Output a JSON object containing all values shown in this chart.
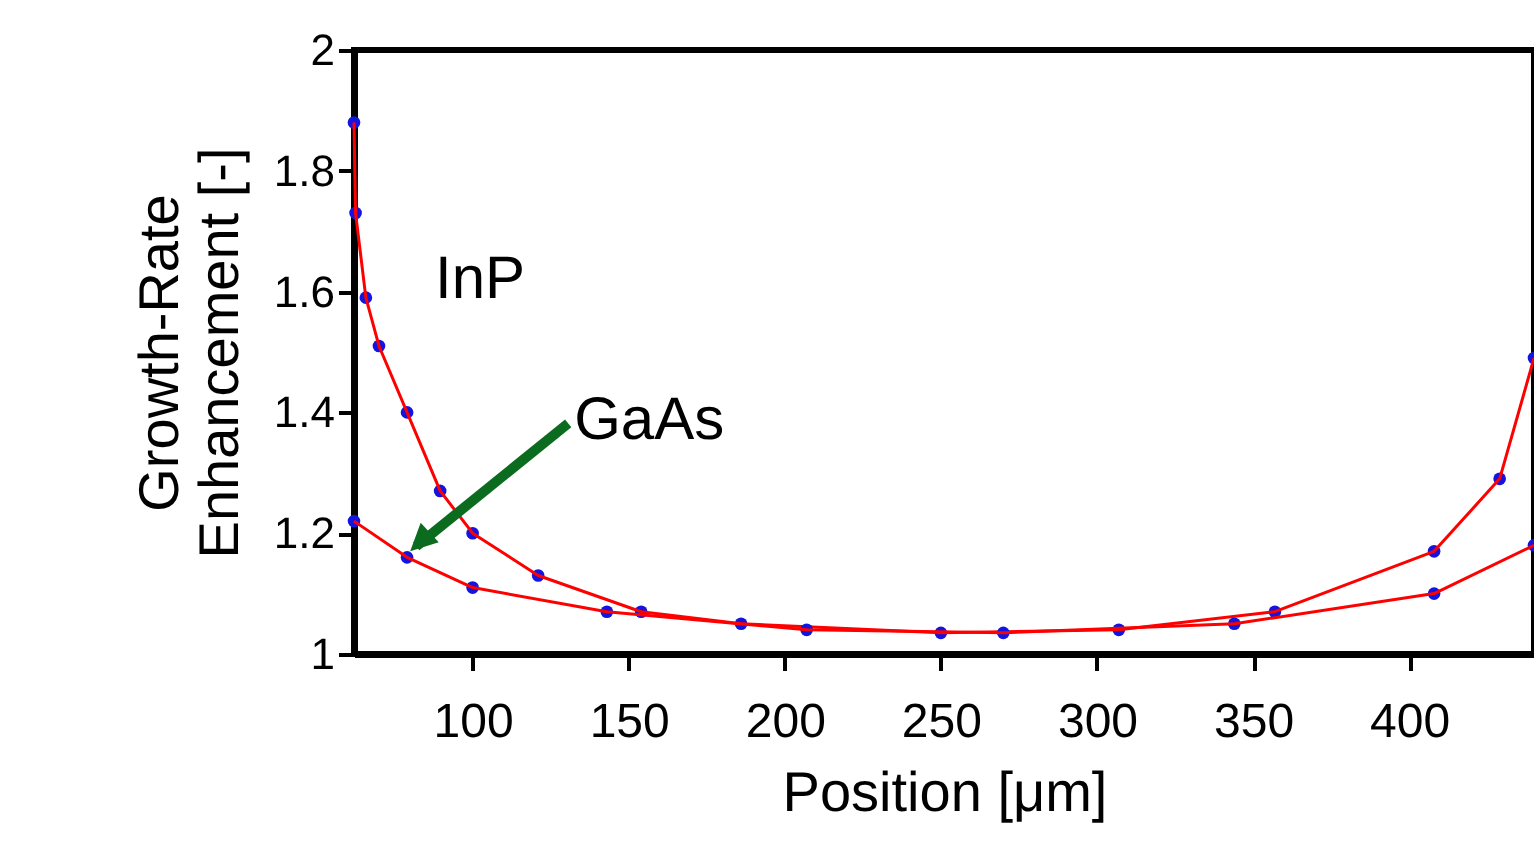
{
  "chart_data": {
    "type": "scatter",
    "xlabel": "Position [μm]",
    "ylabel": "Growth-Rate\nEnhancement [-]",
    "xlim": [
      62,
      440
    ],
    "ylim": [
      1,
      2
    ],
    "xticks": [
      100,
      150,
      200,
      250,
      300,
      350,
      400
    ],
    "yticks": [
      1,
      1.2,
      1.4,
      1.6,
      1.8,
      2
    ],
    "grid": false,
    "marker": "circle",
    "series": [
      {
        "color": "#1414e0",
        "x": [
          62,
          62.5,
          65.8,
          70,
          79,
          89.6,
          100,
          121,
          154,
          186,
          250,
          307,
          357,
          408,
          429,
          440
        ],
        "values": [
          1.88,
          1.73,
          1.59,
          1.51,
          1.4,
          1.27,
          1.2,
          1.13,
          1.07,
          1.05,
          1.035,
          1.04,
          1.07,
          1.17,
          1.29,
          1.49
        ]
      },
      {
        "type": "line",
        "marker": "none",
        "line_style": "solid",
        "color": "#ff0000",
        "x": [
          62,
          62.5,
          65.8,
          70,
          79,
          89.6,
          100,
          121,
          154,
          186,
          250,
          307,
          357,
          408,
          429,
          440
        ],
        "values": [
          1.88,
          1.73,
          1.59,
          1.51,
          1.4,
          1.27,
          1.2,
          1.13,
          1.07,
          1.05,
          1.035,
          1.04,
          1.07,
          1.17,
          1.29,
          1.49
        ]
      },
      {
        "color": "#1414e0",
        "x": [
          62,
          79,
          100,
          143,
          207,
          270,
          344,
          408,
          440
        ],
        "values": [
          1.22,
          1.16,
          1.11,
          1.07,
          1.04,
          1.035,
          1.05,
          1.1,
          1.18
        ]
      },
      {
        "type": "line",
        "marker": "none",
        "line_style": "solid",
        "color": "#ff0000",
        "x": [
          62,
          79,
          100,
          143,
          207,
          270,
          344,
          408,
          440
        ],
        "values": [
          1.22,
          1.16,
          1.11,
          1.07,
          1.04,
          1.035,
          1.05,
          1.1,
          1.18
        ]
      }
    ],
    "annotations": [
      "InP",
      {
        "text": "GaAs",
        "x": 80,
        "y": 1.17
      }
    ]
  }
}
